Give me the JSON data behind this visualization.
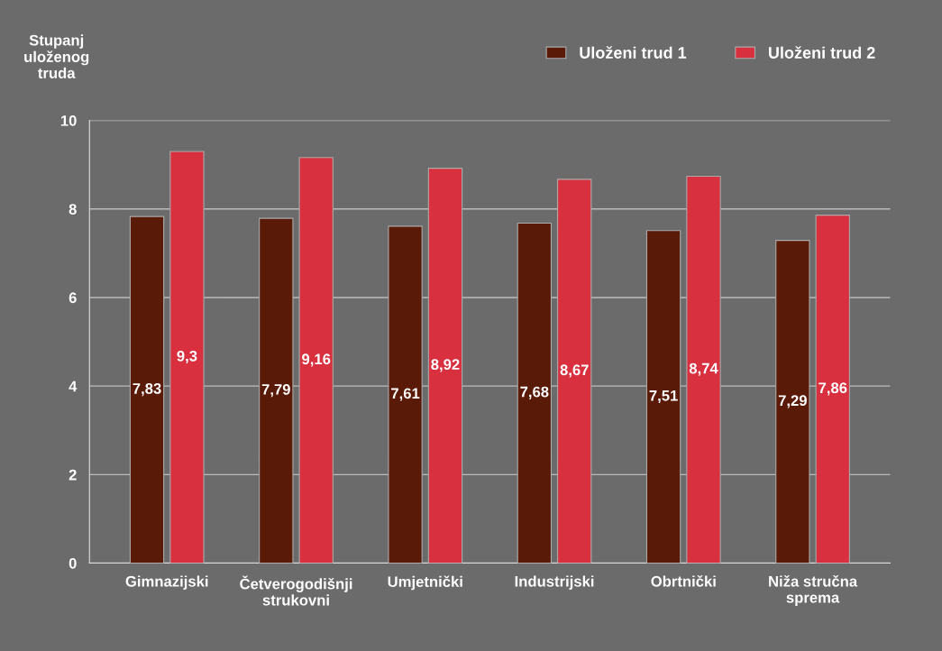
{
  "chart_data": {
    "type": "bar",
    "ylabel": "Stupanj\nuloženog\ntruda",
    "categories": [
      "Gimnazijski",
      "Četverogodišnji\nstrukovni",
      "Umjetnički",
      "Industrijski",
      "Obrtnički",
      "Niža stručna\nsprema"
    ],
    "series": [
      {
        "name": "Uloženi trud 1",
        "color": "#5a1a08",
        "values": [
          7.83,
          7.79,
          7.61,
          7.68,
          7.51,
          7.29
        ],
        "value_labels": [
          "7,83",
          "7,79",
          "7,61",
          "7,68",
          "7,51",
          "7,29"
        ]
      },
      {
        "name": "Uloženi trud 2",
        "color": "#d8303f",
        "values": [
          9.3,
          9.16,
          8.92,
          8.67,
          8.74,
          7.86
        ],
        "value_labels": [
          "9,3",
          "9,16",
          "8,92",
          "8,67",
          "8,74",
          "7,86"
        ]
      }
    ],
    "ylim": [
      0,
      10
    ],
    "yticks": [
      0,
      2,
      4,
      6,
      8,
      10
    ],
    "grid": "y",
    "legend": "top right"
  }
}
